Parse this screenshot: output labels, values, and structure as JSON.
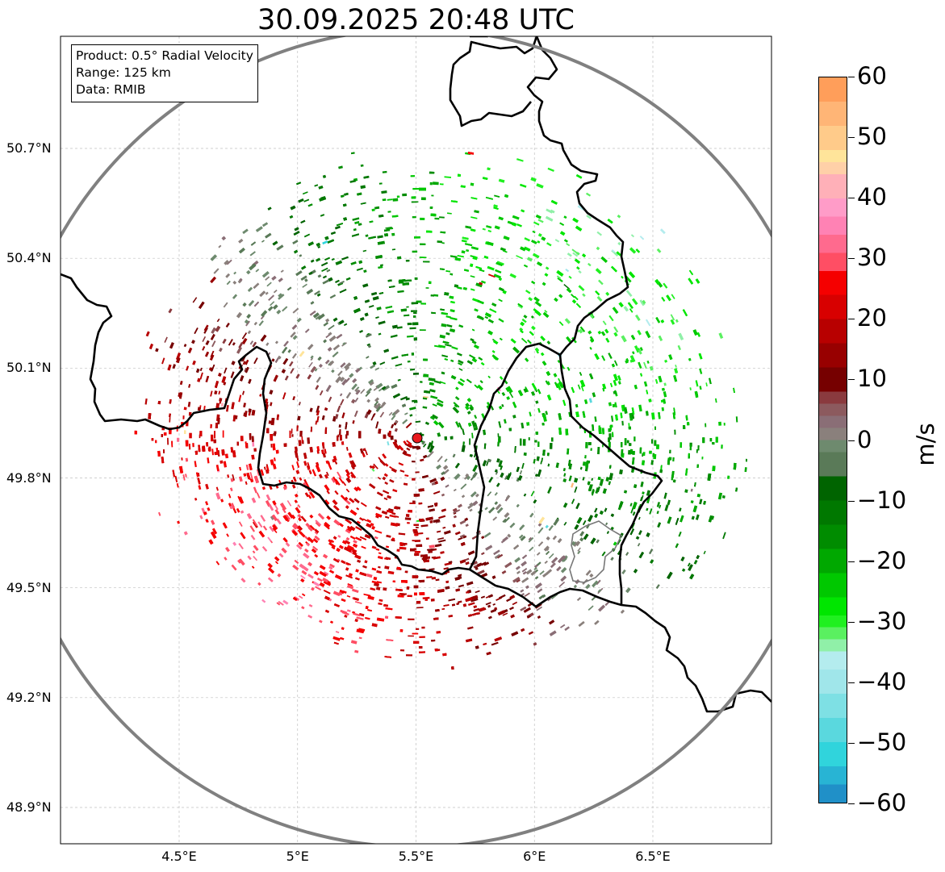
{
  "title": "30.09.2025 20:48 UTC",
  "info": {
    "product": "Product: 0.5° Radial Velocity",
    "range": "Range: 125 km",
    "data": "Data: RMIB"
  },
  "lat_ticks": [
    {
      "value": 50.7,
      "label": "50.7°N"
    },
    {
      "value": 50.4,
      "label": "50.4°N"
    },
    {
      "value": 50.1,
      "label": "50.1°N"
    },
    {
      "value": 49.8,
      "label": "49.8°N"
    },
    {
      "value": 49.5,
      "label": "49.5°N"
    },
    {
      "value": 49.2,
      "label": "49.2°N"
    },
    {
      "value": 48.9,
      "label": "48.9°N"
    }
  ],
  "lon_ticks": [
    {
      "value": 4.5,
      "label": "4.5°E"
    },
    {
      "value": 5.0,
      "label": "5°E"
    },
    {
      "value": 5.5,
      "label": "5.5°E"
    },
    {
      "value": 6.0,
      "label": "6°E"
    },
    {
      "value": 6.5,
      "label": "6.5°E"
    }
  ],
  "colorbar": {
    "min": -60,
    "max": 60,
    "unit": "m/s",
    "tick_labels": [
      "60",
      "50",
      "40",
      "30",
      "20",
      "10",
      "0",
      "−10",
      "−20",
      "−30",
      "−40",
      "−50",
      "−60"
    ],
    "tick_values": [
      60,
      50,
      40,
      30,
      20,
      10,
      0,
      -10,
      -20,
      -30,
      -40,
      -50,
      -60
    ],
    "bands": [
      {
        "from": 56,
        "to": 60,
        "color": "#ff9e5a"
      },
      {
        "from": 52,
        "to": 56,
        "color": "#ffb576"
      },
      {
        "from": 48,
        "to": 52,
        "color": "#ffcb8a"
      },
      {
        "from": 46,
        "to": 48,
        "color": "#ffe49a"
      },
      {
        "from": 44,
        "to": 46,
        "color": "#ffd0a8"
      },
      {
        "from": 40,
        "to": 44,
        "color": "#ffb0b8"
      },
      {
        "from": 37,
        "to": 40,
        "color": "#ff9cc8"
      },
      {
        "from": 34,
        "to": 37,
        "color": "#ff82b4"
      },
      {
        "from": 31,
        "to": 34,
        "color": "#ff6a8e"
      },
      {
        "from": 28,
        "to": 31,
        "color": "#ff4e64"
      },
      {
        "from": 24,
        "to": 28,
        "color": "#f50000"
      },
      {
        "from": 20,
        "to": 24,
        "color": "#d80000"
      },
      {
        "from": 16,
        "to": 20,
        "color": "#b80000"
      },
      {
        "from": 12,
        "to": 16,
        "color": "#980000"
      },
      {
        "from": 8,
        "to": 12,
        "color": "#760000"
      },
      {
        "from": 6,
        "to": 8,
        "color": "#8a3a3e"
      },
      {
        "from": 4,
        "to": 6,
        "color": "#8c5a5e"
      },
      {
        "from": 2,
        "to": 4,
        "color": "#8a6e76"
      },
      {
        "from": 0,
        "to": 2,
        "color": "#8a807c"
      },
      {
        "from": -2,
        "to": 0,
        "color": "#6e8a6e"
      },
      {
        "from": -6,
        "to": -2,
        "color": "#5a7a58"
      },
      {
        "from": -10,
        "to": -6,
        "color": "#006400"
      },
      {
        "from": -14,
        "to": -10,
        "color": "#007800"
      },
      {
        "from": -18,
        "to": -14,
        "color": "#008c00"
      },
      {
        "from": -22,
        "to": -18,
        "color": "#00a800"
      },
      {
        "from": -26,
        "to": -22,
        "color": "#00c800"
      },
      {
        "from": -29,
        "to": -26,
        "color": "#00e600"
      },
      {
        "from": -31,
        "to": -29,
        "color": "#20f020"
      },
      {
        "from": -33,
        "to": -31,
        "color": "#5af060"
      },
      {
        "from": -35,
        "to": -33,
        "color": "#90f0a8"
      },
      {
        "from": -38,
        "to": -35,
        "color": "#b4ecee"
      },
      {
        "from": -42,
        "to": -38,
        "color": "#a0e6ea"
      },
      {
        "from": -46,
        "to": -42,
        "color": "#7ee0e4"
      },
      {
        "from": -50,
        "to": -46,
        "color": "#5ad8de"
      },
      {
        "from": -54,
        "to": -50,
        "color": "#30d4dc"
      },
      {
        "from": -57,
        "to": -54,
        "color": "#28b4d4"
      },
      {
        "from": -60,
        "to": -57,
        "color": "#2090c8"
      }
    ]
  },
  "radar_site": {
    "lat": 49.914,
    "lon": 5.506,
    "marker_color": "#e8191e"
  },
  "range_ring_color": "#808080"
}
